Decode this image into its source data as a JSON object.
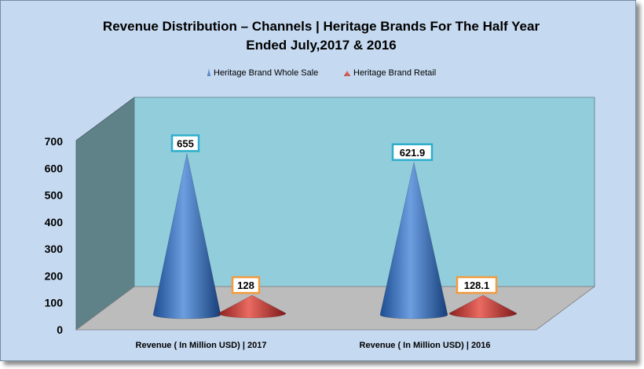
{
  "chart_data": {
    "type": "bar",
    "bar_shape": "cone",
    "title": "Revenue Distribution  – Channels  | Heritage Brands For The Half Year",
    "subtitle": "Ended July,2017 & 2016",
    "categories": [
      "Revenue ( In Million USD) | 2017",
      "Revenue ( In Million USD) | 2016"
    ],
    "series": [
      {
        "name": "Heritage Brand Whole Sale",
        "values": [
          655,
          621.9
        ],
        "color": "#4a7fc8",
        "label_border": "#2eaecb"
      },
      {
        "name": "Heritage Brand Retail",
        "values": [
          128,
          128.1
        ],
        "color": "#d0403a",
        "label_border": "#f39a3c"
      }
    ],
    "data_labels": [
      [
        "655",
        "621.9"
      ],
      [
        "128",
        "128.1"
      ]
    ],
    "y_ticks": [
      "0",
      "100",
      "200",
      "300",
      "400",
      "500",
      "600",
      "700"
    ],
    "ylim": [
      0,
      700
    ],
    "legend_position": "top",
    "grid": false,
    "colors": {
      "background": "#c5d9f0",
      "back_wall": "#92cddc",
      "side_wall": "#5f8288",
      "floor": "#bcbcbc"
    }
  }
}
